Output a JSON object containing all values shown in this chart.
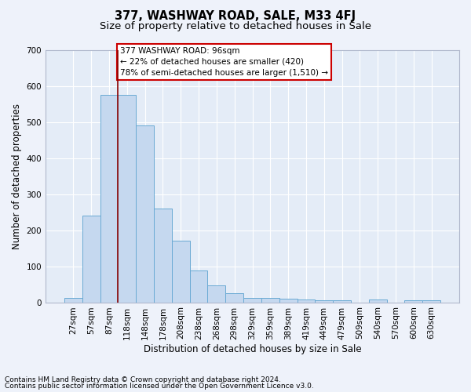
{
  "title": "377, WASHWAY ROAD, SALE, M33 4FJ",
  "subtitle": "Size of property relative to detached houses in Sale",
  "xlabel": "Distribution of detached houses by size in Sale",
  "ylabel": "Number of detached properties",
  "footnote1": "Contains HM Land Registry data © Crown copyright and database right 2024.",
  "footnote2": "Contains public sector information licensed under the Open Government Licence v3.0.",
  "bar_labels": [
    "27sqm",
    "57sqm",
    "87sqm",
    "118sqm",
    "148sqm",
    "178sqm",
    "208sqm",
    "238sqm",
    "268sqm",
    "298sqm",
    "329sqm",
    "359sqm",
    "389sqm",
    "419sqm",
    "449sqm",
    "479sqm",
    "509sqm",
    "540sqm",
    "570sqm",
    "600sqm",
    "630sqm"
  ],
  "bar_values": [
    12,
    240,
    575,
    575,
    490,
    260,
    170,
    88,
    48,
    25,
    12,
    12,
    10,
    7,
    5,
    5,
    0,
    8,
    0,
    5,
    5
  ],
  "bar_color": "#c5d8ef",
  "bar_edge_color": "#6aaad4",
  "vline_color": "#8b0000",
  "annotation_text": "377 WASHWAY ROAD: 96sqm\n← 22% of detached houses are smaller (420)\n78% of semi-detached houses are larger (1,510) →",
  "annotation_box_color": "white",
  "annotation_box_edge": "#cc0000",
  "ylim": [
    0,
    700
  ],
  "yticks": [
    0,
    100,
    200,
    300,
    400,
    500,
    600,
    700
  ],
  "background_color": "#eef2fa",
  "plot_bg_color": "#e4ecf7",
  "grid_color": "#ffffff",
  "title_fontsize": 10.5,
  "subtitle_fontsize": 9.5,
  "axis_label_fontsize": 8.5,
  "tick_fontsize": 7.5,
  "footnote_fontsize": 6.5
}
